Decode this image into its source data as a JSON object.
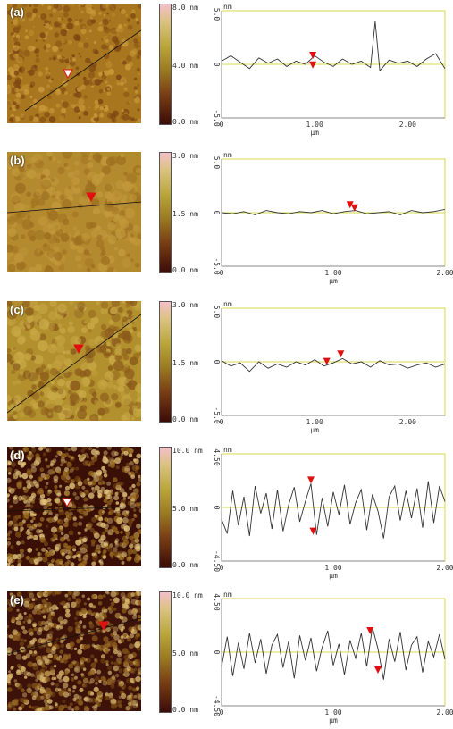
{
  "panels": [
    {
      "label": "(a)",
      "colorbar": {
        "top": "8.0 nm",
        "mid": "4.0 nm",
        "bottom": "0.0 nm"
      },
      "ylim": [
        -5.0,
        5.0
      ],
      "y_ticks": [
        "5.0",
        "0",
        "-5.0"
      ],
      "xlim": [
        0,
        2.4
      ],
      "x_ticks": [
        "0",
        "1.00",
        "2.00"
      ]
    },
    {
      "label": "(b)",
      "colorbar": {
        "top": "3.0 nm",
        "mid": "1.5 nm",
        "bottom": "0.0 nm"
      },
      "ylim": [
        -5.0,
        5.0
      ],
      "y_ticks": [
        "5.0",
        "0",
        "-5.0"
      ],
      "xlim": [
        0,
        2.0
      ],
      "x_ticks": [
        "0",
        "1.00",
        "2.00"
      ]
    },
    {
      "label": "(c)",
      "colorbar": {
        "top": "3.0 nm",
        "mid": "1.5 nm",
        "bottom": "0.0 nm"
      },
      "ylim": [
        -5.0,
        5.0
      ],
      "y_ticks": [
        "5.0",
        "0",
        "-5.0"
      ],
      "xlim": [
        0,
        2.4
      ],
      "x_ticks": [
        "0",
        "1.00",
        "2.00"
      ]
    },
    {
      "label": "(d)",
      "colorbar": {
        "top": "10.0 nm",
        "mid": "5.0 nm",
        "bottom": "0.0 nm"
      },
      "ylim": [
        -4.5,
        4.5
      ],
      "y_ticks": [
        "4.50",
        "0",
        "-4.50"
      ],
      "xlim": [
        0,
        2.0
      ],
      "x_ticks": [
        "0",
        "1.00",
        "2.00"
      ]
    },
    {
      "label": "(e)",
      "colorbar": {
        "top": "10.0 nm",
        "mid": "5.0 nm",
        "bottom": "0.0 nm"
      },
      "ylim": [
        -4.5,
        4.5
      ],
      "y_ticks": [
        "4.50",
        "0",
        "-4.50"
      ],
      "xlim": [
        0,
        2.0
      ],
      "x_ticks": [
        "0",
        "1.00",
        "2.00"
      ]
    }
  ],
  "axis_units": {
    "y": "nm",
    "x": "µm"
  },
  "chart_data": [
    {
      "type": "line",
      "xlabel": "µm",
      "ylabel": "nm",
      "xlim": [
        0,
        2.4
      ],
      "ylim": [
        -5,
        5
      ],
      "series": [
        {
          "values_x": [
            0,
            0.1,
            0.2,
            0.3,
            0.4,
            0.5,
            0.6,
            0.7,
            0.8,
            0.9,
            1.0,
            1.1,
            1.2,
            1.3,
            1.4,
            1.5,
            1.6,
            1.65,
            1.7,
            1.8,
            1.9,
            2.0,
            2.1,
            2.2,
            2.3,
            2.4
          ],
          "values_y": [
            0.3,
            0.8,
            0.2,
            -0.4,
            0.6,
            0.1,
            0.5,
            -0.2,
            0.3,
            0.0,
            0.8,
            0.2,
            -0.2,
            0.5,
            0.0,
            0.3,
            -0.3,
            4.0,
            -0.6,
            0.4,
            0.1,
            0.3,
            -0.2,
            0.5,
            1.0,
            -0.4
          ]
        }
      ],
      "markers": [
        {
          "x": 0.98,
          "y": 0.5
        },
        {
          "x": 0.98,
          "y": -0.4
        }
      ]
    },
    {
      "type": "line",
      "xlabel": "µm",
      "ylabel": "nm",
      "xlim": [
        0,
        2.0
      ],
      "ylim": [
        -5,
        5
      ],
      "series": [
        {
          "values_x": [
            0,
            0.1,
            0.2,
            0.3,
            0.4,
            0.5,
            0.6,
            0.7,
            0.8,
            0.9,
            1.0,
            1.1,
            1.2,
            1.3,
            1.4,
            1.5,
            1.6,
            1.7,
            1.8,
            1.9,
            2.0
          ],
          "values_y": [
            0.0,
            -0.1,
            0.1,
            -0.2,
            0.2,
            0.0,
            -0.1,
            0.1,
            0.0,
            0.2,
            -0.1,
            0.1,
            0.2,
            -0.1,
            0.0,
            0.1,
            -0.2,
            0.2,
            0.0,
            0.1,
            0.3
          ]
        }
      ],
      "markers": [
        {
          "x": 1.15,
          "y": 0.4
        },
        {
          "x": 1.19,
          "y": 0.1
        }
      ]
    },
    {
      "type": "line",
      "xlabel": "µm",
      "ylabel": "nm",
      "xlim": [
        0,
        2.4
      ],
      "ylim": [
        -5,
        5
      ],
      "series": [
        {
          "values_x": [
            0,
            0.1,
            0.2,
            0.3,
            0.4,
            0.5,
            0.6,
            0.7,
            0.8,
            0.9,
            1.0,
            1.1,
            1.2,
            1.3,
            1.4,
            1.5,
            1.6,
            1.7,
            1.8,
            1.9,
            2.0,
            2.1,
            2.2,
            2.3,
            2.4
          ],
          "values_y": [
            0.1,
            -0.4,
            -0.1,
            -0.9,
            0.0,
            -0.6,
            -0.2,
            -0.5,
            0.0,
            -0.3,
            0.2,
            -0.4,
            -0.1,
            0.3,
            -0.2,
            0.0,
            -0.5,
            0.1,
            -0.3,
            -0.2,
            -0.6,
            -0.3,
            -0.1,
            -0.5,
            -0.2
          ]
        }
      ],
      "markers": [
        {
          "x": 1.13,
          "y": -0.3
        },
        {
          "x": 1.28,
          "y": 0.4
        }
      ]
    },
    {
      "type": "line",
      "xlabel": "µm",
      "ylabel": "nm",
      "xlim": [
        0,
        2.0
      ],
      "ylim": [
        -4.5,
        4.5
      ],
      "series": [
        {
          "values_x": [
            0,
            0.05,
            0.1,
            0.15,
            0.2,
            0.25,
            0.3,
            0.35,
            0.4,
            0.45,
            0.5,
            0.55,
            0.6,
            0.65,
            0.7,
            0.75,
            0.8,
            0.85,
            0.9,
            0.95,
            1.0,
            1.05,
            1.1,
            1.15,
            1.2,
            1.25,
            1.3,
            1.35,
            1.4,
            1.45,
            1.5,
            1.55,
            1.6,
            1.65,
            1.7,
            1.75,
            1.8,
            1.85,
            1.9,
            1.95,
            2.0
          ],
          "values_y": [
            -1.0,
            -2.2,
            1.4,
            -1.5,
            0.9,
            -2.4,
            1.8,
            -0.5,
            1.2,
            -1.8,
            1.5,
            -2.0,
            0.2,
            1.7,
            -1.2,
            0.5,
            2.0,
            -2.3,
            0.8,
            -1.6,
            1.3,
            -0.6,
            1.9,
            -1.4,
            0.4,
            1.5,
            -1.9,
            1.1,
            -0.3,
            -2.6,
            0.9,
            1.8,
            -1.1,
            1.4,
            -0.9,
            1.6,
            -1.7,
            2.2,
            -1.3,
            1.8,
            0.5
          ]
        }
      ],
      "markers": [
        {
          "x": 0.8,
          "y": 2.0
        },
        {
          "x": 0.82,
          "y": -2.3
        }
      ]
    },
    {
      "type": "line",
      "xlabel": "µm",
      "ylabel": "nm",
      "xlim": [
        0,
        2.0
      ],
      "ylim": [
        -4.5,
        4.5
      ],
      "series": [
        {
          "values_x": [
            0,
            0.05,
            0.1,
            0.15,
            0.2,
            0.25,
            0.3,
            0.35,
            0.4,
            0.45,
            0.5,
            0.55,
            0.6,
            0.65,
            0.7,
            0.75,
            0.8,
            0.85,
            0.9,
            0.95,
            1.0,
            1.05,
            1.1,
            1.15,
            1.2,
            1.25,
            1.3,
            1.35,
            1.4,
            1.45,
            1.5,
            1.55,
            1.6,
            1.65,
            1.7,
            1.75,
            1.8,
            1.85,
            1.9,
            1.95,
            2.0
          ],
          "values_y": [
            -1.2,
            1.3,
            -2.0,
            0.8,
            -1.4,
            1.6,
            -0.9,
            1.1,
            -1.8,
            0.6,
            1.5,
            -1.3,
            0.9,
            -2.2,
            1.4,
            -0.7,
            1.2,
            -1.6,
            0.4,
            1.8,
            -1.1,
            0.7,
            -1.9,
            1.0,
            -0.5,
            1.6,
            -1.2,
            2.1,
            0.3,
            -2.3,
            1.1,
            -0.8,
            1.7,
            -1.5,
            0.6,
            1.3,
            -1.7,
            0.9,
            -0.4,
            1.5,
            -0.6
          ]
        }
      ],
      "markers": [
        {
          "x": 1.33,
          "y": 1.5
        },
        {
          "x": 1.4,
          "y": -1.8
        }
      ]
    }
  ]
}
